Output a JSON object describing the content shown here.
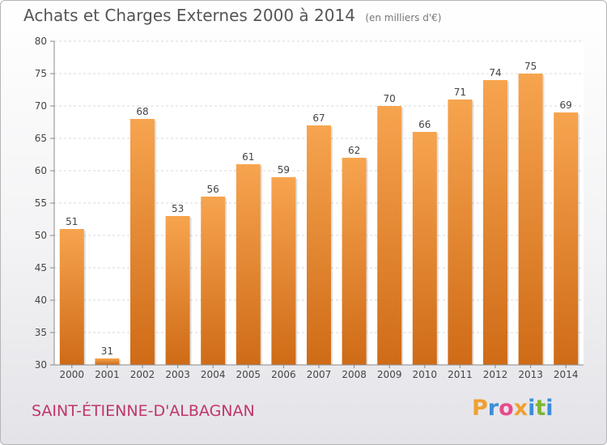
{
  "chart_data": {
    "type": "bar",
    "title": "Achats et Charges Externes 2000 à 2014",
    "subtitle": "(en milliers d'€)",
    "categories": [
      "2000",
      "2001",
      "2002",
      "2003",
      "2004",
      "2005",
      "2006",
      "2007",
      "2008",
      "2009",
      "2010",
      "2011",
      "2012",
      "2013",
      "2014"
    ],
    "values": [
      51,
      31,
      68,
      53,
      56,
      61,
      59,
      67,
      62,
      70,
      66,
      71,
      74,
      75,
      69
    ],
    "ylim": [
      30,
      80
    ],
    "yticks": [
      30,
      35,
      40,
      45,
      50,
      55,
      60,
      65,
      70,
      75,
      80
    ],
    "grid": true,
    "bar_color_top": "#f7a44f",
    "bar_color_bottom": "#cf6b17"
  },
  "footer": {
    "commune": "SAINT-ÉTIENNE-D'ALBAGNAN",
    "logo_letters": [
      "P",
      "r",
      "o",
      "x",
      "i",
      "t",
      "i"
    ],
    "logo_colors": [
      "#f0a030",
      "#3a8ed8",
      "#e84a8c",
      "#f0a030",
      "#3a8ed8",
      "#7ab830",
      "#3a8ed8"
    ]
  }
}
